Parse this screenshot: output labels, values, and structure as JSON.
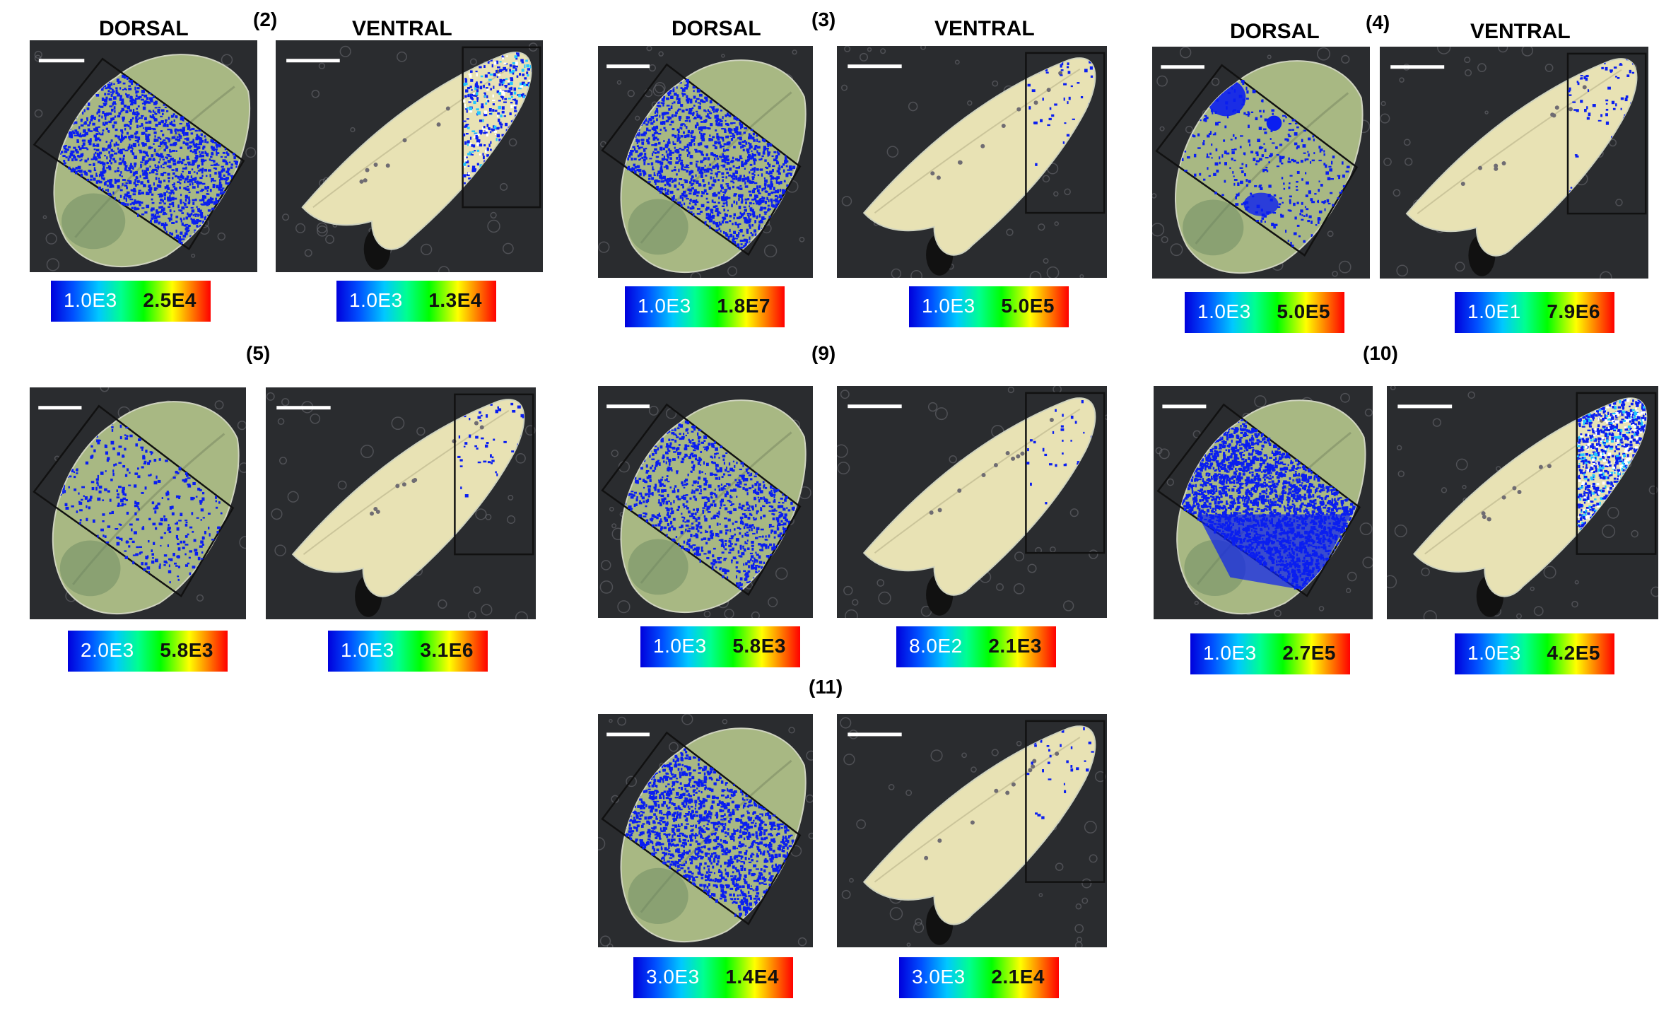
{
  "groups": [
    {
      "id": "(2)",
      "dorsal_label": "DORSAL",
      "ventral_label": "VENTRAL",
      "dorsal_scale": {
        "min": "1.0E3",
        "max": "2.5E4"
      },
      "ventral_scale": {
        "min": "1.0E3",
        "max": "1.3E4"
      }
    },
    {
      "id": "(3)",
      "dorsal_label": "DORSAL",
      "ventral_label": "VENTRAL",
      "dorsal_scale": {
        "min": "1.0E3",
        "max": "1.8E7"
      },
      "ventral_scale": {
        "min": "1.0E3",
        "max": "5.0E5"
      }
    },
    {
      "id": "(4)",
      "dorsal_label": "DORSAL",
      "ventral_label": "VENTRAL",
      "dorsal_scale": {
        "min": "1.0E3",
        "max": "5.0E5"
      },
      "ventral_scale": {
        "min": "1.0E1",
        "max": "7.9E6"
      }
    },
    {
      "id": "(5)",
      "dorsal_scale": {
        "min": "2.0E3",
        "max": "5.8E3"
      },
      "ventral_scale": {
        "min": "1.0E3",
        "max": "3.1E6"
      }
    },
    {
      "id": "(9)",
      "dorsal_scale": {
        "min": "1.0E3",
        "max": "5.8E3"
      },
      "ventral_scale": {
        "min": "8.0E2",
        "max": "2.1E3"
      }
    },
    {
      "id": "(10)",
      "dorsal_scale": {
        "min": "1.0E3",
        "max": "2.7E5"
      },
      "ventral_scale": {
        "min": "1.0E3",
        "max": "4.2E5"
      }
    },
    {
      "id": "(11)",
      "dorsal_scale": {
        "min": "3.0E3",
        "max": "1.4E4"
      },
      "ventral_scale": {
        "min": "3.0E3",
        "max": "2.1E4"
      }
    }
  ],
  "colors": {
    "signal": "#0a1ef0",
    "leaf_dorsal": "#a8b883",
    "leaf_ventral": "#e8e2b4",
    "background": "#2a2c2f",
    "scale_bar": "#ffffff"
  }
}
